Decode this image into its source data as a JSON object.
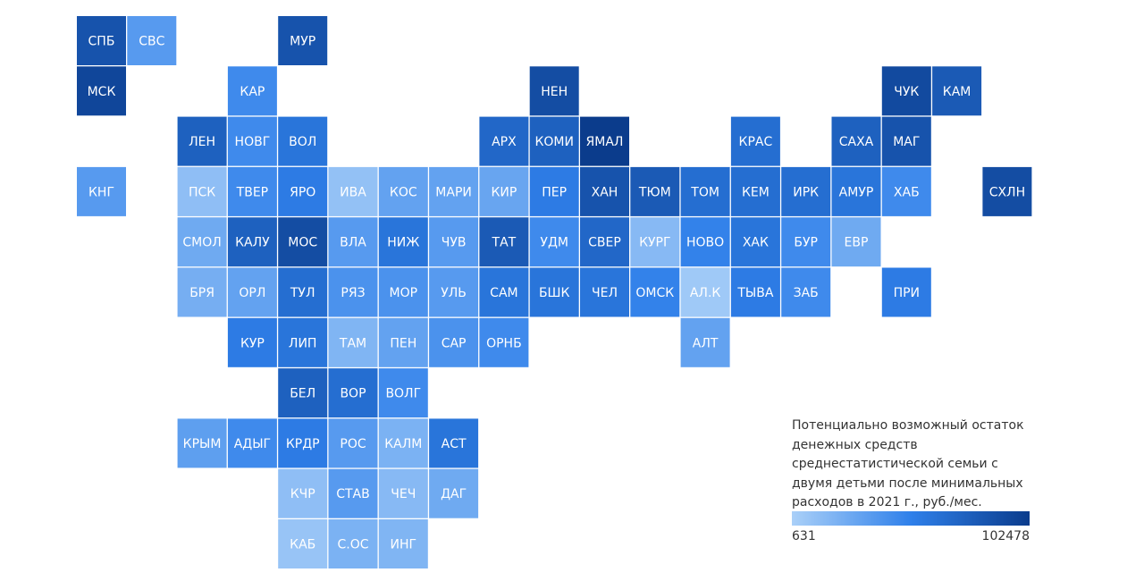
{
  "map": {
    "regions": [
      {
        "label": "СПБ",
        "value": 85000
      },
      {
        "label": "СВС",
        "value": 35000
      },
      {
        "label": "МУР",
        "value": 85000
      },
      {
        "label": "МСК",
        "value": 95000
      },
      {
        "label": "КАР",
        "value": 45000
      },
      {
        "label": "НЕН",
        "value": 90000
      },
      {
        "label": "ЧУК",
        "value": 92000
      },
      {
        "label": "КАМ",
        "value": 80000
      },
      {
        "label": "ЛЕН",
        "value": 75000
      },
      {
        "label": "НОВГ",
        "value": 45000
      },
      {
        "label": "ВОЛ",
        "value": 60000
      },
      {
        "label": "АРХ",
        "value": 70000
      },
      {
        "label": "КОМИ",
        "value": 75000
      },
      {
        "label": "ЯМАЛ",
        "value": 102478
      },
      {
        "label": "КРАС",
        "value": 65000
      },
      {
        "label": "САХА",
        "value": 75000
      },
      {
        "label": "МАГ",
        "value": 85000
      },
      {
        "label": "КНГ",
        "value": 35000
      },
      {
        "label": "ПСК",
        "value": 12000
      },
      {
        "label": "ТВЕР",
        "value": 45000
      },
      {
        "label": "ЯРО",
        "value": 55000
      },
      {
        "label": "ИВА",
        "value": 10000
      },
      {
        "label": "КОС",
        "value": 30000
      },
      {
        "label": "МАРИ",
        "value": 30000
      },
      {
        "label": "КИР",
        "value": 28000
      },
      {
        "label": "ПЕР",
        "value": 55000
      },
      {
        "label": "ХАН",
        "value": 85000
      },
      {
        "label": "ТЮМ",
        "value": 80000
      },
      {
        "label": "ТОМ",
        "value": 65000
      },
      {
        "label": "КЕМ",
        "value": 65000
      },
      {
        "label": "ИРК",
        "value": 65000
      },
      {
        "label": "АМУР",
        "value": 60000
      },
      {
        "label": "ХАБ",
        "value": 45000
      },
      {
        "label": "СХЛН",
        "value": 90000
      },
      {
        "label": "СМОЛ",
        "value": 25000
      },
      {
        "label": "КАЛУ",
        "value": 75000
      },
      {
        "label": "МОС",
        "value": 90000
      },
      {
        "label": "ВЛА",
        "value": 35000
      },
      {
        "label": "НИЖ",
        "value": 60000
      },
      {
        "label": "ЧУВ",
        "value": 35000
      },
      {
        "label": "ТАТ",
        "value": 80000
      },
      {
        "label": "УДМ",
        "value": 45000
      },
      {
        "label": "СВЕР",
        "value": 70000
      },
      {
        "label": "КУРГ",
        "value": 15000
      },
      {
        "label": "НОВО",
        "value": 50000
      },
      {
        "label": "ХАК",
        "value": 60000
      },
      {
        "label": "БУР",
        "value": 45000
      },
      {
        "label": "ЕВР",
        "value": 25000
      },
      {
        "label": "БРЯ",
        "value": 22000
      },
      {
        "label": "ОРЛ",
        "value": 30000
      },
      {
        "label": "ТУЛ",
        "value": 65000
      },
      {
        "label": "РЯЗ",
        "value": 40000
      },
      {
        "label": "МОР",
        "value": 40000
      },
      {
        "label": "УЛЬ",
        "value": 35000
      },
      {
        "label": "САМ",
        "value": 60000
      },
      {
        "label": "БШК",
        "value": 60000
      },
      {
        "label": "ЧЕЛ",
        "value": 60000
      },
      {
        "label": "ОМСК",
        "value": 50000
      },
      {
        "label": "АЛ.К",
        "value": 5000
      },
      {
        "label": "ТЫВА",
        "value": 55000
      },
      {
        "label": "ЗАБ",
        "value": 45000
      },
      {
        "label": "ПРИ",
        "value": 55000
      },
      {
        "label": "КУР",
        "value": 55000
      },
      {
        "label": "ЛИП",
        "value": 60000
      },
      {
        "label": "ТАМ",
        "value": 18000
      },
      {
        "label": "ПЕН",
        "value": 30000
      },
      {
        "label": "САР",
        "value": 40000
      },
      {
        "label": "ОРНБ",
        "value": 45000
      },
      {
        "label": "АЛТ",
        "value": 30000
      },
      {
        "label": "БЕЛ",
        "value": 75000
      },
      {
        "label": "ВОР",
        "value": 65000
      },
      {
        "label": "ВОЛГ",
        "value": 45000
      },
      {
        "label": "КРЫМ",
        "value": 32000
      },
      {
        "label": "АДЫГ",
        "value": 45000
      },
      {
        "label": "КРДР",
        "value": 55000
      },
      {
        "label": "РОС",
        "value": 35000
      },
      {
        "label": "КАЛМ",
        "value": 20000
      },
      {
        "label": "АСТ",
        "value": 60000
      },
      {
        "label": "КЧР",
        "value": 12000
      },
      {
        "label": "СТАВ",
        "value": 35000
      },
      {
        "label": "ЧЕЧ",
        "value": 15000
      },
      {
        "label": "ДАГ",
        "value": 25000
      },
      {
        "label": "КАБ",
        "value": 8000
      },
      {
        "label": "С.ОС",
        "value": 20000
      },
      {
        "label": "ИНГ",
        "value": 18000
      }
    ],
    "legend": {
      "title": "Потенциально возможный остаток денежных средств среднестатистической семьи с двумя детьми после минимальных расходов в 2021 г., руб./мес.",
      "min": 631,
      "max": 102478,
      "colors": [
        "#aad0f8",
        "#2f80ea",
        "#0b3c8c"
      ]
    }
  }
}
